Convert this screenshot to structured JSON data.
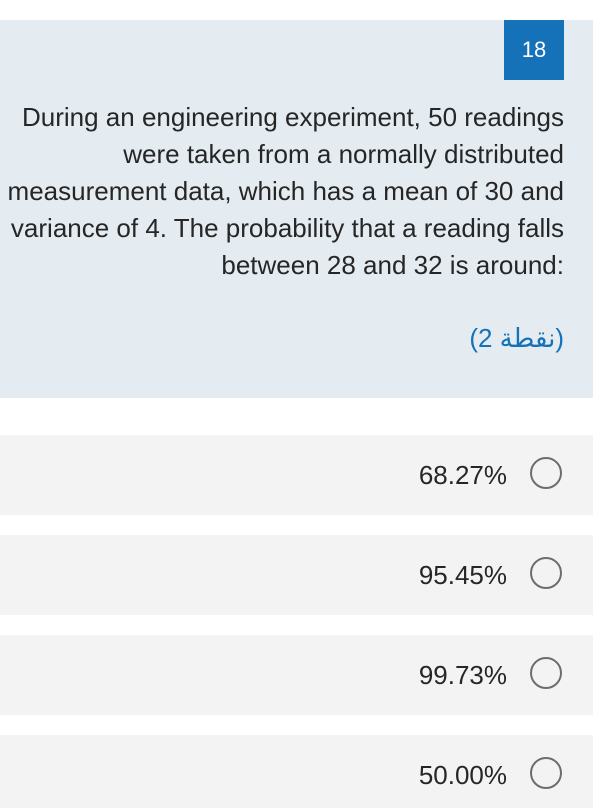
{
  "question": {
    "number": "18",
    "text": "During an engineering experiment, 50 readings were taken from a normally distributed measurement data, which has a mean of 30 and variance of 4. The probability that a reading falls between 28 and 32 is around:",
    "points": "(2 نقطة)"
  },
  "options": [
    {
      "label": "68.27%",
      "selected": false
    },
    {
      "label": "95.45%",
      "selected": false
    },
    {
      "label": "99.73%",
      "selected": false
    },
    {
      "label": "50.00%",
      "selected": false
    }
  ],
  "colors": {
    "card_background": "#e4ecf1",
    "accent": "#1672b8",
    "option_background": "#f3f3f3",
    "text": "#262626"
  }
}
